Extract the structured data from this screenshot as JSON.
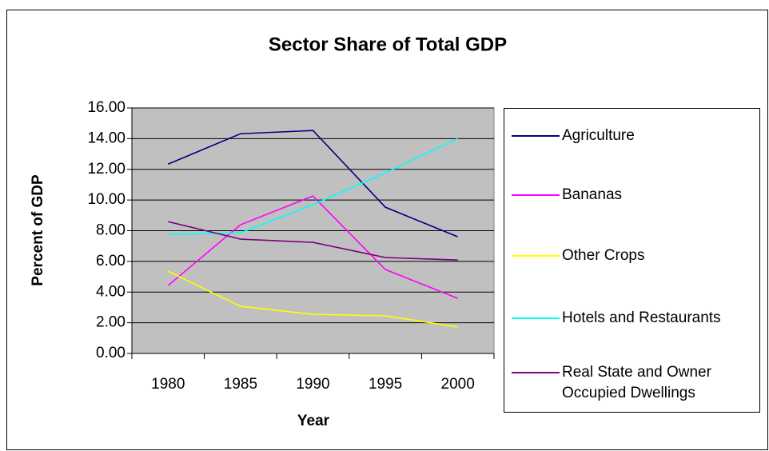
{
  "chart_data": {
    "type": "line",
    "title": "Sector Share of Total GDP",
    "x_label": "Year",
    "y_label": "Percent of GDP",
    "categories": [
      "1980",
      "1985",
      "1990",
      "1995",
      "2000"
    ],
    "series": [
      {
        "name": "Agriculture",
        "color": "#000080",
        "values": [
          12.34,
          14.32,
          14.53,
          9.53,
          7.6
        ]
      },
      {
        "name": "Bananas",
        "color": "#ff00ff",
        "values": [
          4.43,
          8.39,
          10.26,
          5.47,
          3.59
        ]
      },
      {
        "name": "Other Crops",
        "color": "#ffff00",
        "values": [
          5.36,
          3.07,
          2.55,
          2.45,
          1.72
        ]
      },
      {
        "name": "Hotels and Restaurants",
        "color": "#00ffff",
        "values": [
          7.76,
          7.86,
          9.69,
          11.77,
          14.01
        ]
      },
      {
        "name": "Real State and Owner Occupied Dwellings",
        "color": "#800080",
        "values": [
          8.59,
          7.45,
          7.24,
          6.25,
          6.09
        ]
      }
    ],
    "ylim": [
      0,
      16
    ],
    "yticks": [
      {
        "value": 0,
        "label": "0.00"
      },
      {
        "value": 2,
        "label": "2.00"
      },
      {
        "value": 4,
        "label": "4.00"
      },
      {
        "value": 6,
        "label": "6.00"
      },
      {
        "value": 8,
        "label": "8.00"
      },
      {
        "value": 10,
        "label": "10.00"
      },
      {
        "value": 12,
        "label": "12.00"
      },
      {
        "value": 14,
        "label": "14.00"
      },
      {
        "value": 16,
        "label": "16.00"
      }
    ],
    "grid": true,
    "legend": "right"
  }
}
